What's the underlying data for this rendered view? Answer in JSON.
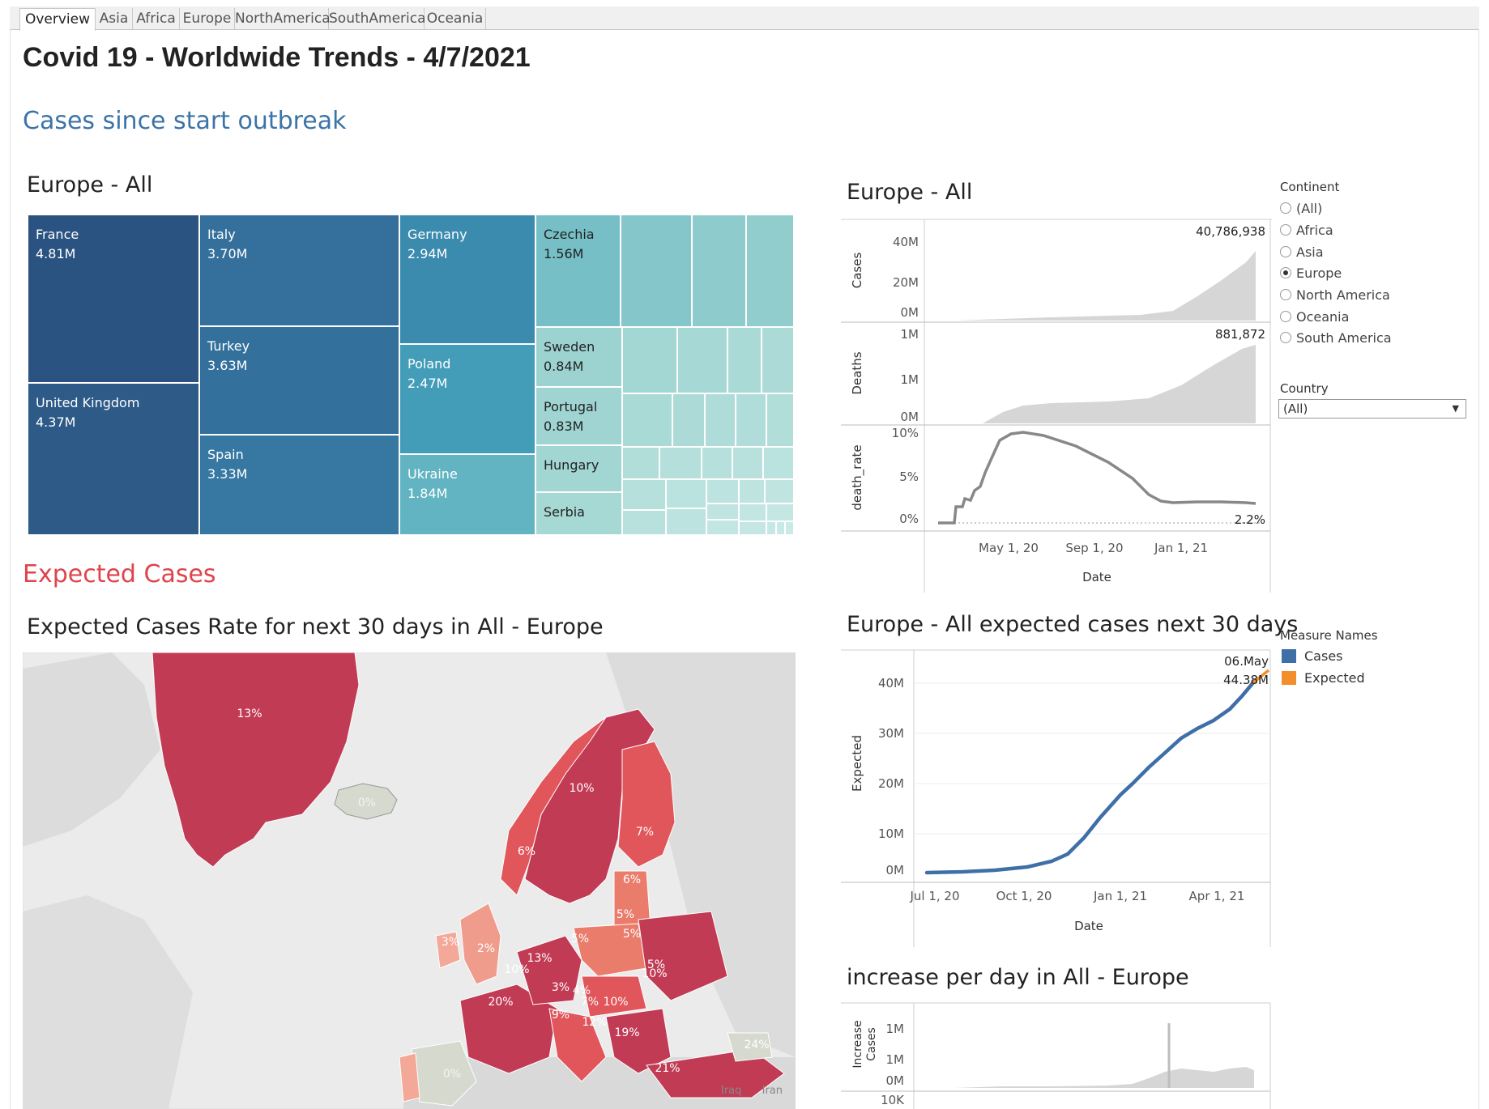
{
  "tabs": [
    {
      "label": "Overview",
      "active": true
    },
    {
      "label": "Asia"
    },
    {
      "label": "Africa"
    },
    {
      "label": "Europe"
    },
    {
      "label": "NorthAmerica"
    },
    {
      "label": "SouthAmerica"
    },
    {
      "label": "Oceania"
    }
  ],
  "header": {
    "title": "Covid 19 - Worldwide Trends - 4/7/2021"
  },
  "sections": {
    "cases": "Cases since start outbreak",
    "expected": "Expected Cases"
  },
  "treemap": {
    "title": "Europe - All",
    "items": [
      {
        "name": "France",
        "value": "4.81M"
      },
      {
        "name": "United Kingdom",
        "value": "4.37M"
      },
      {
        "name": "Italy",
        "value": "3.70M"
      },
      {
        "name": "Turkey",
        "value": "3.63M"
      },
      {
        "name": "Spain",
        "value": "3.33M"
      },
      {
        "name": "Germany",
        "value": "2.94M"
      },
      {
        "name": "Poland",
        "value": "2.47M"
      },
      {
        "name": "Ukraine",
        "value": "1.84M"
      },
      {
        "name": "Czechia",
        "value": "1.56M"
      },
      {
        "name": "Sweden",
        "value": "0.84M"
      },
      {
        "name": "Portugal",
        "value": "0.83M"
      },
      {
        "name": "Hungary",
        "value": ""
      },
      {
        "name": "Serbia",
        "value": ""
      }
    ]
  },
  "colors": {
    "dark_blue": "#2b5381",
    "teal": "#44a0bb",
    "light_teal": "#a9dcd4",
    "map_red": "#c13b55",
    "area_grey": "#d6d6d6",
    "line_blue": "#3f6fa7",
    "line_orange": "#f28e2b"
  },
  "trend_panel": {
    "title": "Europe - All",
    "cases_label": "Cases",
    "cases_ticks": [
      "40M",
      "20M",
      "0M"
    ],
    "cases_annot": "40,786,938",
    "deaths_label": "Deaths",
    "deaths_ticks": [
      "1M",
      "1M",
      "0M"
    ],
    "deaths_annot": "881,872",
    "rate_label": "death_rate",
    "rate_ticks": [
      "10%",
      "5%",
      "0%"
    ],
    "rate_annot": "2.2%",
    "x_ticks": [
      "May 1, 20",
      "Sep 1, 20",
      "Jan 1, 21"
    ],
    "x_label": "Date"
  },
  "filters": {
    "continent_label": "Continent",
    "continent_options": [
      {
        "label": "(All)",
        "checked": false
      },
      {
        "label": "Africa",
        "checked": false
      },
      {
        "label": "Asia",
        "checked": false
      },
      {
        "label": "Europe",
        "checked": true
      },
      {
        "label": "North America",
        "checked": false
      },
      {
        "label": "Oceania",
        "checked": false
      },
      {
        "label": "South America",
        "checked": false
      }
    ],
    "country_label": "Country",
    "country_value": "(All)"
  },
  "map": {
    "title": "Expected Cases Rate for next 30 days in All - Europe",
    "labels": [
      {
        "t": "13%"
      },
      {
        "t": "0%"
      },
      {
        "t": "10%"
      },
      {
        "t": "7%"
      },
      {
        "t": "6%"
      },
      {
        "t": "6%"
      },
      {
        "t": "5%"
      },
      {
        "t": "5%"
      },
      {
        "t": "5%"
      },
      {
        "t": "3%"
      },
      {
        "t": "2%"
      },
      {
        "t": "13%"
      },
      {
        "t": "10%"
      },
      {
        "t": "10%"
      },
      {
        "t": "20%"
      },
      {
        "t": "3%"
      },
      {
        "t": "4%"
      },
      {
        "t": "9%"
      },
      {
        "t": "7%"
      },
      {
        "t": "10%"
      },
      {
        "t": "12%"
      },
      {
        "t": "19%"
      },
      {
        "t": "21%"
      },
      {
        "t": "0%"
      },
      {
        "t": "24%"
      },
      {
        "t": "5%"
      }
    ],
    "place_labels": [
      "Iraq",
      "Iran"
    ]
  },
  "expected_panel": {
    "title": "Europe - All expected cases next 30 days",
    "y_label": "Expected",
    "y_ticks": [
      "40M",
      "30M",
      "20M",
      "10M",
      "0M"
    ],
    "x_ticks": [
      "Jul 1, 20",
      "Oct 1, 20",
      "Jan 1, 21",
      "Apr 1, 21"
    ],
    "x_label": "Date",
    "annot_date": "06.May",
    "annot_value": "44.38M",
    "legend_title": "Measure Names",
    "legend": [
      {
        "name": "Cases",
        "color": "#3f6fa7"
      },
      {
        "name": "Expected",
        "color": "#f28e2b"
      }
    ]
  },
  "increase_panel": {
    "title": "increase per day in All - Europe",
    "y_label_line1": "Increase",
    "y_label_line2": "Cases",
    "y_ticks": [
      "1M",
      "1M",
      "0M"
    ],
    "lower_tick": "10K"
  },
  "chart_data": [
    {
      "type": "area",
      "title": "Cases",
      "x": [
        "Mar 1, 20",
        "May 1, 20",
        "Sep 1, 20",
        "Jan 1, 21",
        "Apr 7, 21"
      ],
      "values": [
        0,
        1700000,
        4200000,
        24000000,
        40786938
      ],
      "ylim": [
        0,
        45000000
      ],
      "y_ticks": [
        "40M",
        "20M",
        "0M"
      ]
    },
    {
      "type": "area",
      "title": "Deaths",
      "x": [
        "Mar 1, 20",
        "May 1, 20",
        "Sep 1, 20",
        "Jan 1, 21",
        "Apr 7, 21"
      ],
      "values": [
        0,
        150000,
        220000,
        560000,
        881872
      ],
      "ylim": [
        0,
        1000000
      ]
    },
    {
      "type": "line",
      "title": "death_rate",
      "x": [
        "Mar 1, 20",
        "Apr 1, 20",
        "May 1, 20",
        "Sep 1, 20",
        "Jan 1, 21",
        "Apr 7, 21"
      ],
      "values": [
        0,
        5,
        10,
        7,
        2.3,
        2.2
      ],
      "ylim": [
        0,
        10
      ],
      "y_ticks": [
        "10%",
        "5%",
        "0%"
      ]
    },
    {
      "type": "line",
      "title": "Europe - All expected cases next 30 days",
      "x": [
        "Jul 1, 20",
        "Oct 1, 20",
        "Jan 1, 21",
        "Apr 1, 21",
        "May 6, 21"
      ],
      "series": [
        {
          "name": "Cases",
          "values": [
            2000000,
            6500000,
            27000000,
            39000000,
            null
          ]
        },
        {
          "name": "Expected",
          "values": [
            null,
            null,
            null,
            40786938,
            44380000
          ]
        }
      ],
      "ylim": [
        0,
        45000000
      ]
    }
  ]
}
